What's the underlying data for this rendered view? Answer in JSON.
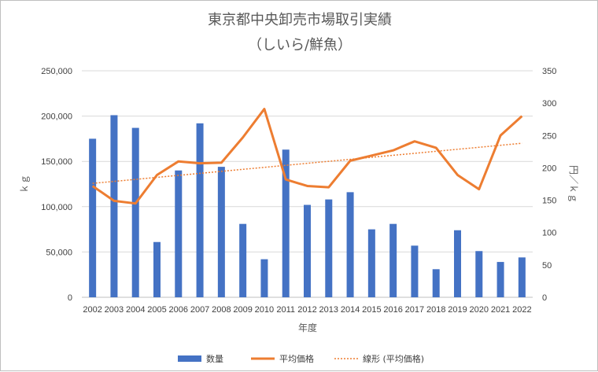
{
  "chart_data": {
    "type": "bar",
    "title": "東京都中央卸売市場取引実績",
    "subtitle": "（しいら/鮮魚）",
    "xlabel": "年度",
    "ylabel": "ｋｇ",
    "y2label": "円／ｋｇ",
    "categories": [
      "2002",
      "2003",
      "2004",
      "2005",
      "2006",
      "2007",
      "2008",
      "2009",
      "2010",
      "2011",
      "2012",
      "2013",
      "2014",
      "2015",
      "2016",
      "2017",
      "2018",
      "2019",
      "2020",
      "2021",
      "2022"
    ],
    "ylim": [
      0,
      250000
    ],
    "yticks": [
      "0",
      "50,000",
      "100,000",
      "150,000",
      "200,000",
      "250,000"
    ],
    "y2lim": [
      0,
      350
    ],
    "y2ticks": [
      "0",
      "50",
      "100",
      "150",
      "200",
      "250",
      "300",
      "350"
    ],
    "grid": true,
    "legend_position": "bottom",
    "series": [
      {
        "name": "数量",
        "type": "bar",
        "axis": "left",
        "color": "#4472c4",
        "values": [
          175000,
          201000,
          187000,
          61000,
          140000,
          192000,
          144000,
          81000,
          42000,
          163000,
          102000,
          108000,
          116000,
          75000,
          81000,
          57000,
          31000,
          74000,
          51000,
          39000,
          44000
        ]
      },
      {
        "name": "平均価格",
        "type": "line",
        "axis": "right",
        "color": "#ed7d31",
        "values": [
          172,
          149,
          145,
          189,
          210,
          207,
          208,
          247,
          291,
          182,
          172,
          170,
          211,
          219,
          227,
          241,
          231,
          189,
          167,
          250,
          280
        ]
      },
      {
        "name": "線形 (平均価格)",
        "type": "trendline",
        "axis": "right",
        "color": "#ed7d31",
        "values": [
          176,
          179.1,
          182.2,
          185.3,
          188.4,
          191.5,
          194.6,
          197.7,
          200.8,
          203.9,
          207,
          210.1,
          213.2,
          216.3,
          219.4,
          222.5,
          225.6,
          228.7,
          231.8,
          234.9,
          238
        ]
      }
    ]
  }
}
